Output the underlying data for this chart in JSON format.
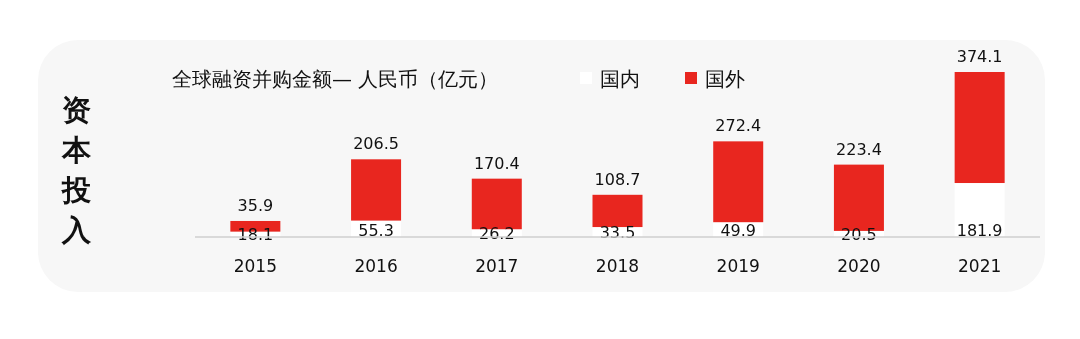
{
  "chart_data": {
    "type": "bar",
    "stacked": true,
    "title": "全球融资并购金额— 人民币（亿元）",
    "ylabel": "资本投入",
    "categories": [
      "2015",
      "2016",
      "2017",
      "2018",
      "2019",
      "2020",
      "2021"
    ],
    "series": [
      {
        "name": "国内",
        "color": "#ffffff",
        "values": [
          18.1,
          55.3,
          26.2,
          33.5,
          49.9,
          20.5,
          181.9
        ]
      },
      {
        "name": "国外",
        "color": "#e8261f",
        "values": [
          35.9,
          206.5,
          170.4,
          108.7,
          272.4,
          223.4,
          374.1
        ]
      }
    ],
    "data_labels": true,
    "legend": "top"
  }
}
